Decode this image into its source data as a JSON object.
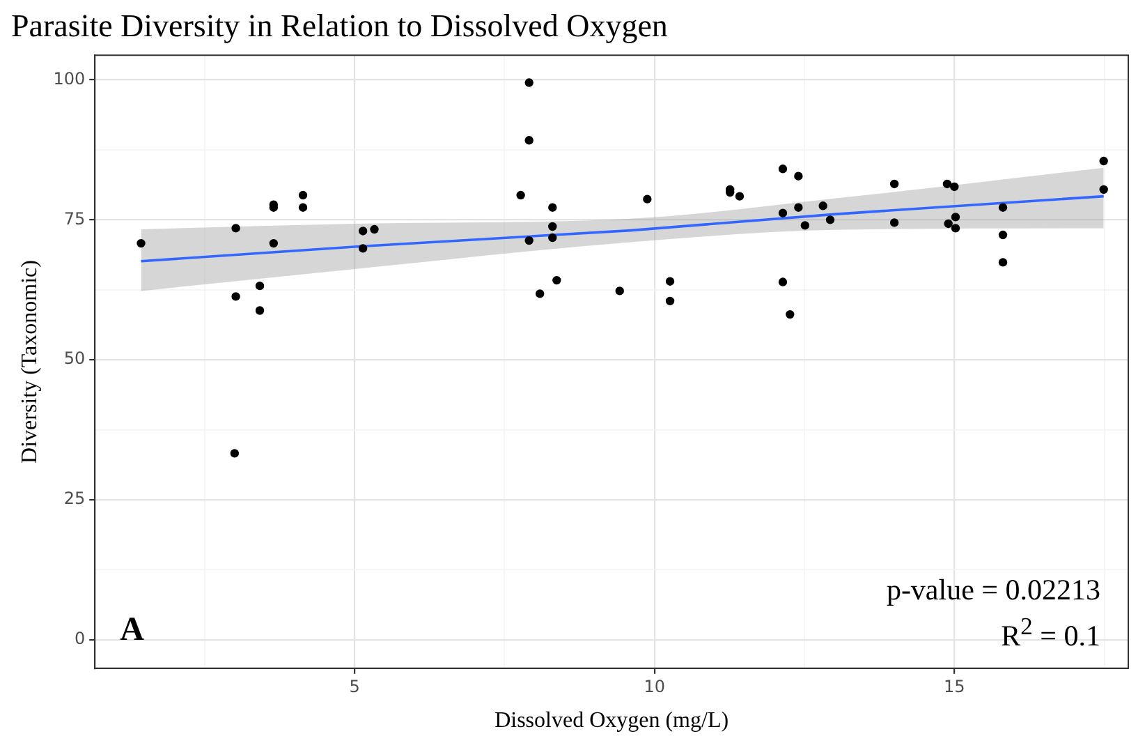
{
  "chart_data": {
    "type": "scatter",
    "title": "Parasite Diversity in Relation to Dissolved Oxygen",
    "xlabel": "Dissolved Oxygen (mg/L)",
    "ylabel": "Diversity (Taxonomic)",
    "xlim": [
      0.67,
      17.9
    ],
    "ylim": [
      -5.1,
      104.4
    ],
    "xticks": [
      {
        "value": 2.5,
        "label": null
      },
      5,
      {
        "value": 7.5,
        "label": null
      },
      10,
      {
        "value": 12.5,
        "label": null
      },
      15,
      {
        "value": 17.5,
        "label": null
      }
    ],
    "yticks": [
      0,
      {
        "value": 12.5,
        "label": null
      },
      25,
      {
        "value": 37.5,
        "label": null
      },
      50,
      {
        "value": 62.5,
        "label": null
      },
      75,
      {
        "value": 87.5,
        "label": null
      },
      100
    ],
    "grid": true,
    "legend": false,
    "marker": "circle",
    "series": [
      {
        "color": "#000000",
        "x": [
          1.44,
          3.02,
          3.02,
          3.0,
          3.42,
          3.42,
          3.65,
          3.65,
          3.65,
          4.14,
          4.14,
          5.14,
          5.14,
          5.33,
          7.77,
          7.91,
          7.91,
          7.91,
          8.09,
          8.3,
          8.3,
          8.3,
          8.37,
          9.42,
          9.88,
          10.26,
          10.26,
          11.26,
          11.26,
          11.42,
          12.14,
          12.14,
          12.14,
          12.26,
          12.4,
          12.4,
          12.51,
          12.81,
          12.93,
          14.0,
          14.0,
          14.88,
          15.0,
          14.9,
          15.02,
          15.02,
          15.81,
          15.81,
          15.81,
          17.49,
          17.49
        ],
        "values": [
          70.8,
          73.5,
          61.3,
          33.3,
          63.2,
          58.8,
          77.7,
          77.2,
          70.8,
          79.4,
          77.2,
          73.0,
          69.9,
          73.3,
          79.4,
          99.5,
          89.2,
          71.3,
          61.8,
          77.2,
          73.8,
          71.8,
          64.2,
          62.3,
          78.7,
          64.0,
          60.5,
          80.4,
          79.9,
          79.2,
          84.1,
          76.2,
          63.9,
          58.1,
          82.8,
          77.2,
          74.0,
          77.5,
          75.0,
          81.4,
          74.5,
          81.4,
          80.9,
          74.3,
          75.5,
          73.5,
          77.2,
          72.3,
          67.4,
          85.5,
          80.4
        ]
      },
      {
        "type": "line",
        "color": "#3366ff",
        "marker": "none",
        "x": [
          1.44,
          5,
          9.6,
          13,
          17.49
        ],
        "values": [
          67.6,
          70.2,
          73.1,
          76.0,
          79.2
        ],
        "lower": [
          62.3,
          66.2,
          71.0,
          73.2,
          73.5
        ],
        "upper": [
          73.3,
          74.3,
          75.2,
          78.8,
          84.3
        ]
      }
    ],
    "annotations": [
      "p-value = 0.02213",
      "R$^{2}$ = 0.1",
      "A"
    ]
  }
}
